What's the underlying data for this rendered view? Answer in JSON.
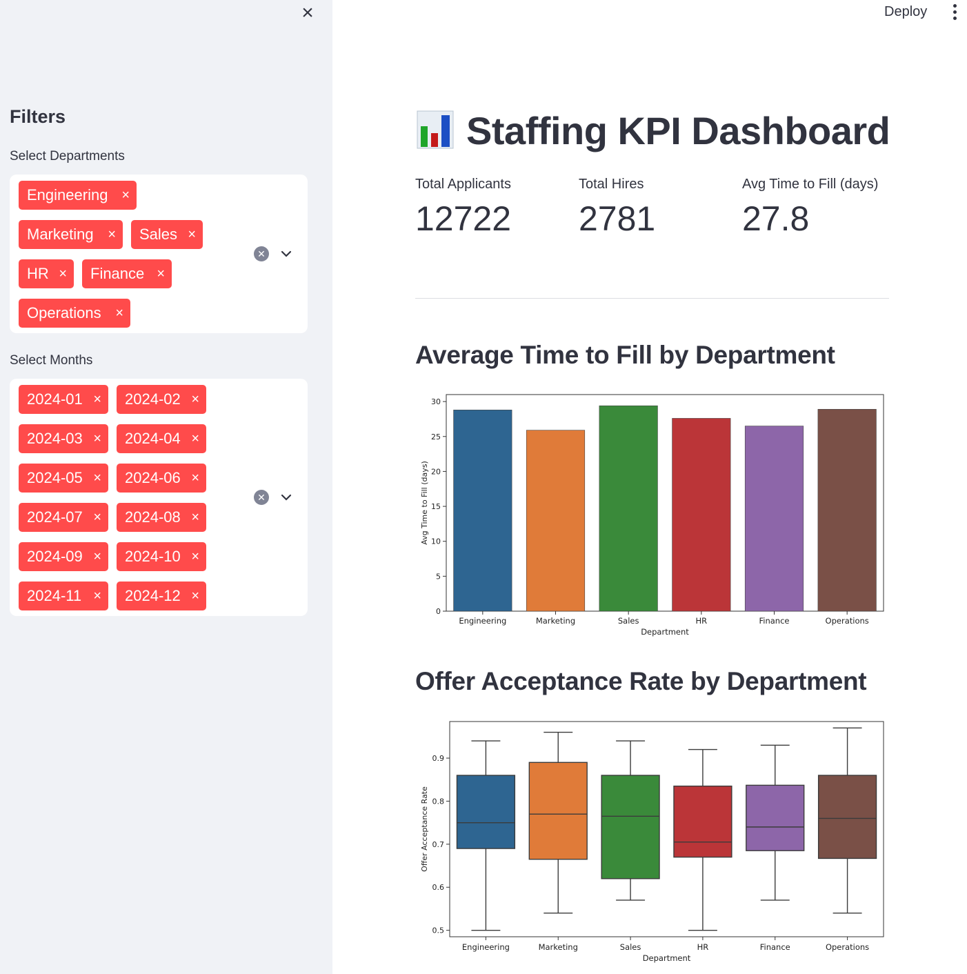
{
  "sidebar": {
    "filters_title": "Filters",
    "departments": {
      "label": "Select Departments",
      "selected": [
        "Engineering",
        "Marketing",
        "Sales",
        "HR",
        "Finance",
        "Operations"
      ]
    },
    "months": {
      "label": "Select Months",
      "selected": [
        "2024-01",
        "2024-02",
        "2024-03",
        "2024-04",
        "2024-05",
        "2024-06",
        "2024-07",
        "2024-08",
        "2024-09",
        "2024-10",
        "2024-11",
        "2024-12"
      ]
    },
    "remove_glyph": "×"
  },
  "header": {
    "deploy_label": "Deploy"
  },
  "main": {
    "title": "Staffing KPI Dashboard",
    "metrics": [
      {
        "label": "Total Applicants",
        "value": "12722"
      },
      {
        "label": "Total Hires",
        "value": "2781"
      },
      {
        "label": "Avg Time to Fill (days)",
        "value": "27.8"
      }
    ],
    "section1_title": "Average Time to Fill by Department",
    "section2_title": "Offer Acceptance Rate by Department"
  },
  "colors": {
    "accent": "#ff4b4b",
    "series": [
      "#2e6591",
      "#e07b39",
      "#3a8a3a",
      "#bb3538",
      "#8d66a9",
      "#7a5047"
    ]
  },
  "chart_data": [
    {
      "type": "bar",
      "categories": [
        "Engineering",
        "Marketing",
        "Sales",
        "HR",
        "Finance",
        "Operations"
      ],
      "values": [
        28.8,
        25.9,
        29.4,
        27.6,
        26.5,
        28.9
      ],
      "xlabel": "Department",
      "ylabel": "Avg Time to Fill (days)",
      "ylim": [
        0,
        31
      ],
      "yticks": [
        0,
        5,
        10,
        15,
        20,
        25,
        30
      ],
      "grid": false
    },
    {
      "type": "box",
      "categories": [
        "Engineering",
        "Marketing",
        "Sales",
        "HR",
        "Finance",
        "Operations"
      ],
      "boxes": [
        {
          "whislo": 0.5,
          "q1": 0.69,
          "med": 0.75,
          "q3": 0.86,
          "whishi": 0.94
        },
        {
          "whislo": 0.54,
          "q1": 0.665,
          "med": 0.77,
          "q3": 0.89,
          "whishi": 0.96
        },
        {
          "whislo": 0.57,
          "q1": 0.62,
          "med": 0.765,
          "q3": 0.86,
          "whishi": 0.94
        },
        {
          "whislo": 0.5,
          "q1": 0.67,
          "med": 0.705,
          "q3": 0.835,
          "whishi": 0.92
        },
        {
          "whislo": 0.57,
          "q1": 0.685,
          "med": 0.74,
          "q3": 0.837,
          "whishi": 0.93
        },
        {
          "whislo": 0.54,
          "q1": 0.667,
          "med": 0.76,
          "q3": 0.86,
          "whishi": 0.97
        }
      ],
      "xlabel": "Department",
      "ylabel": "Offer Acceptance Rate",
      "ylim": [
        0.485,
        0.985
      ],
      "yticks": [
        0.5,
        0.6,
        0.7,
        0.8,
        0.9
      ],
      "grid": false
    }
  ]
}
